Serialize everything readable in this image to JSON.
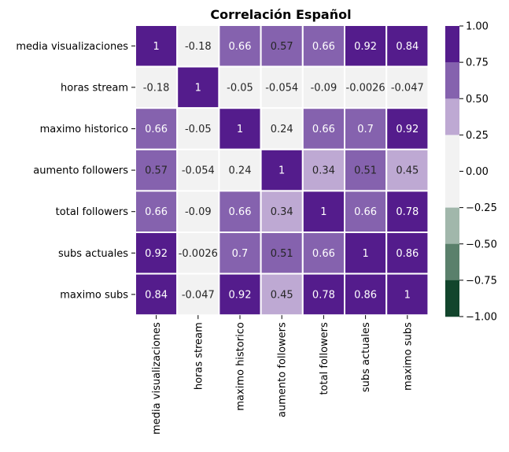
{
  "chart_data": {
    "type": "heatmap",
    "title": "Correlación Español",
    "variables": [
      "media visualizaciones",
      "horas stream",
      "maximo historico",
      "aumento followers",
      "total followers",
      "subs actuales",
      "maximo subs"
    ],
    "matrix": [
      [
        1,
        -0.18,
        0.66,
        0.57,
        0.66,
        0.92,
        0.84
      ],
      [
        -0.18,
        1,
        -0.05,
        -0.054,
        -0.09,
        -0.0026,
        -0.047
      ],
      [
        0.66,
        -0.05,
        1,
        0.24,
        0.66,
        0.7,
        0.92
      ],
      [
        0.57,
        -0.054,
        0.24,
        1,
        0.34,
        0.51,
        0.45
      ],
      [
        0.66,
        -0.09,
        0.66,
        0.34,
        1,
        0.66,
        0.78
      ],
      [
        0.92,
        -0.0026,
        0.7,
        0.51,
        0.66,
        1,
        0.86
      ],
      [
        0.84,
        -0.047,
        0.92,
        0.45,
        0.78,
        0.86,
        1
      ]
    ],
    "cell_labels": [
      [
        "1",
        "-0.18",
        "0.66",
        "0.57",
        "0.66",
        "0.92",
        "0.84"
      ],
      [
        "-0.18",
        "1",
        "-0.05",
        "-0.054",
        "-0.09",
        "-0.0026",
        "-0.047"
      ],
      [
        "0.66",
        "-0.05",
        "1",
        "0.24",
        "0.66",
        "0.7",
        "0.92"
      ],
      [
        "0.57",
        "-0.054",
        "0.24",
        "1",
        "0.34",
        "0.51",
        "0.45"
      ],
      [
        "0.66",
        "-0.09",
        "0.66",
        "0.34",
        "1",
        "0.66",
        "0.78"
      ],
      [
        "0.92",
        "-0.0026",
        "0.7",
        "0.51",
        "0.66",
        "1",
        "0.86"
      ],
      [
        "0.84",
        "-0.047",
        "0.92",
        "0.45",
        "0.78",
        "0.86",
        "1"
      ]
    ],
    "vmin": -1,
    "vmax": 1,
    "colorbar": {
      "ticks": [
        1,
        0.75,
        0.5,
        0.25,
        0,
        -0.25,
        -0.5,
        -0.75,
        -1
      ],
      "tick_labels": [
        "1.00",
        "0.75",
        "0.50",
        "0.25",
        "0.00",
        "−0.25",
        "−0.50",
        "−0.75",
        "−1.00"
      ],
      "bands": [
        {
          "from": 0.75,
          "to": 1.0,
          "color": "#541C8C"
        },
        {
          "from": 0.5,
          "to": 0.75,
          "color": "#8562AE"
        },
        {
          "from": 0.25,
          "to": 0.5,
          "color": "#BEA9D3"
        },
        {
          "from": 0.0,
          "to": 0.25,
          "color": "#F2F2F2"
        },
        {
          "from": -0.25,
          "to": 0.0,
          "color": "#F2F2F2"
        },
        {
          "from": -0.5,
          "to": -0.25,
          "color": "#A1B7AB"
        },
        {
          "from": -0.75,
          "to": -0.5,
          "color": "#5A806B"
        },
        {
          "from": -1.0,
          "to": -0.75,
          "color": "#12452C"
        }
      ]
    },
    "dark_text_below": 0.6,
    "grid_line_color": "#ffffff",
    "text_dark": "#262626",
    "text_light": "#ffffff"
  }
}
